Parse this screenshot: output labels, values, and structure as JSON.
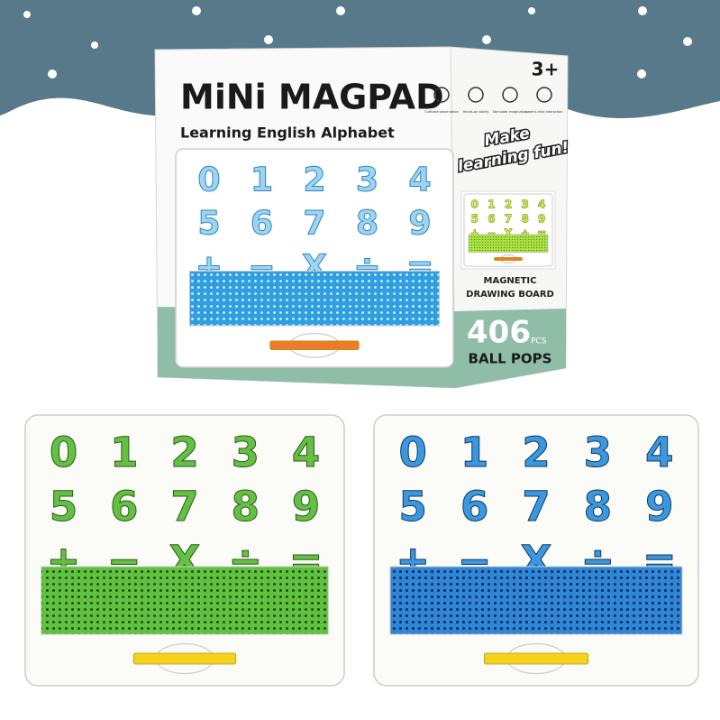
{
  "header": {
    "title": "MiNi MAGPAD",
    "subtitle": "Learning English Alphabet",
    "age": "3+"
  },
  "features": [
    "Cultivate observation",
    "Hands-on ability",
    "Stimulate imagination",
    "parent-child interaction"
  ],
  "slogan": {
    "line1": "Make",
    "line2": "learning fun!"
  },
  "side_title": {
    "line1": "MAGNETIC",
    "line2": "DRAWING BOARD"
  },
  "count": {
    "number": "406",
    "unit": "PCS",
    "label": "BALL POPS"
  },
  "board_symbols": [
    "0",
    "1",
    "2",
    "3",
    "4",
    "5",
    "6",
    "7",
    "8",
    "9",
    "+",
    "−",
    "X",
    "÷",
    "="
  ]
}
